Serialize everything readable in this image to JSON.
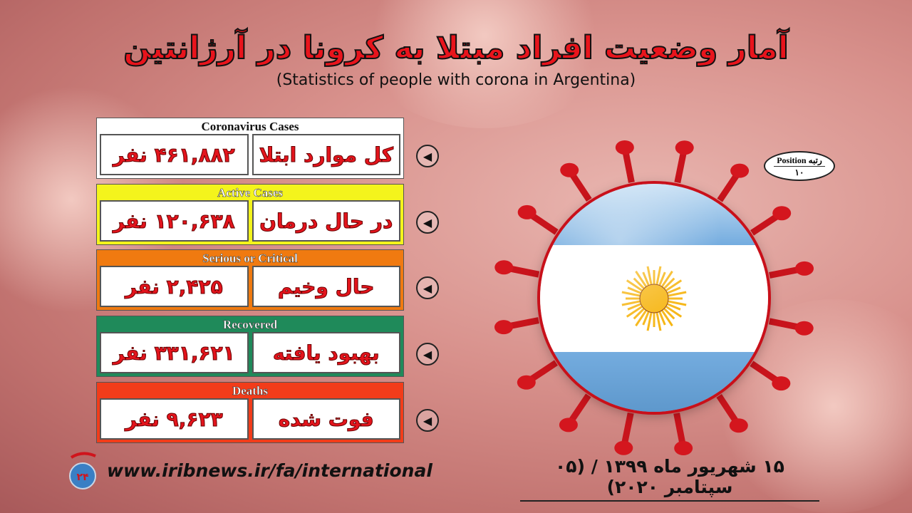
{
  "title": "آمار وضعیت افراد مبتلا به کرونا در آرژانتین",
  "subtitle": "(Statistics of people with corona in Argentina)",
  "stats": [
    {
      "header": "Coronavirus Cases",
      "label": "کل موارد ابتلا",
      "value": "۴۶۱,۸۸۲ نفر",
      "color": "#ffffff",
      "header_color": "#111111"
    },
    {
      "header": "Active Cases",
      "label": "در حال درمان",
      "value": "۱۲۰,۶۳۸ نفر",
      "color": "#f4f41c",
      "header_color": "#ffffff"
    },
    {
      "header": "Serious or Critical",
      "label": "حال وخیم",
      "value": "۲,۴۲۵ نفر",
      "color": "#f07a10",
      "header_color": "#ffffff"
    },
    {
      "header": "Recovered",
      "label": "بهبود یافته",
      "value": "۳۳۱,۶۲۱ نفر",
      "color": "#1f8a5a",
      "header_color": "#ffffff"
    },
    {
      "header": "Deaths",
      "label": "فوت شده",
      "value": "۹,۶۲۳ نفر",
      "color": "#f23c1a",
      "header_color": "#ffffff"
    }
  ],
  "arrow_icon": "arrow-left-circle-icon",
  "position": {
    "label": "Position رتبه",
    "value": "۱۰"
  },
  "flag": {
    "country": "Argentina",
    "blue": "#74acdf",
    "white": "#ffffff",
    "sun": "#f6b40e"
  },
  "footer": {
    "url": "www.iribnews.ir/fa/international",
    "date": "۱۵ شهریور ماه ۱۳۹۹ / (۰۵ سپتامبر ۲۰۲۰)"
  }
}
